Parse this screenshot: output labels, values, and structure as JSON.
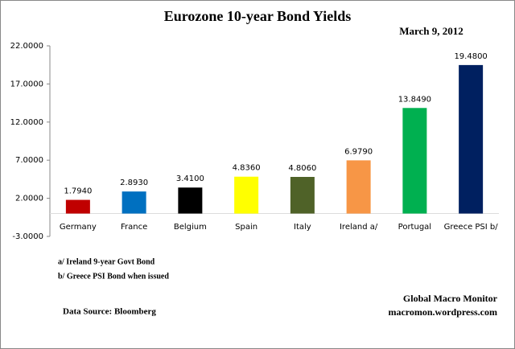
{
  "chart_data": {
    "type": "bar",
    "title": "Eurozone 10-year Bond Yields",
    "subtitle": "March 9, 2012",
    "categories": [
      "Germany",
      "France",
      "Belgium",
      "Spain",
      "Italy",
      "Ireland  a/",
      "Portugal",
      "Greece PSI b/"
    ],
    "values": [
      1.794,
      2.893,
      3.41,
      4.836,
      4.806,
      6.979,
      13.849,
      19.48
    ],
    "value_labels": [
      "1.7940",
      "2.8930",
      "3.4100",
      "4.8360",
      "4.8060",
      "6.9790",
      "13.8490",
      "19.4800"
    ],
    "colors": [
      "#c00000",
      "#0070c0",
      "#000000",
      "#ffff00",
      "#4f6228",
      "#f79646",
      "#00b050",
      "#002060"
    ],
    "ylim": [
      -3,
      22
    ],
    "yticks": [
      {
        "value": -3,
        "label": "-3.0000"
      },
      {
        "value": 2,
        "label": "2.0000"
      },
      {
        "value": 7,
        "label": "7.0000"
      },
      {
        "value": 12,
        "label": "12.0000"
      },
      {
        "value": 17,
        "label": "17.0000"
      },
      {
        "value": 22,
        "label": "22.0000"
      }
    ],
    "grid": false,
    "notes": [
      "a/ Ireland 9-year Govt Bond",
      "b/  Greece PSI Bond  when issued"
    ],
    "source": "Data Source:  Bloomberg",
    "credit": [
      "Global Macro Monitor",
      "macromon.wordpress.com"
    ]
  }
}
